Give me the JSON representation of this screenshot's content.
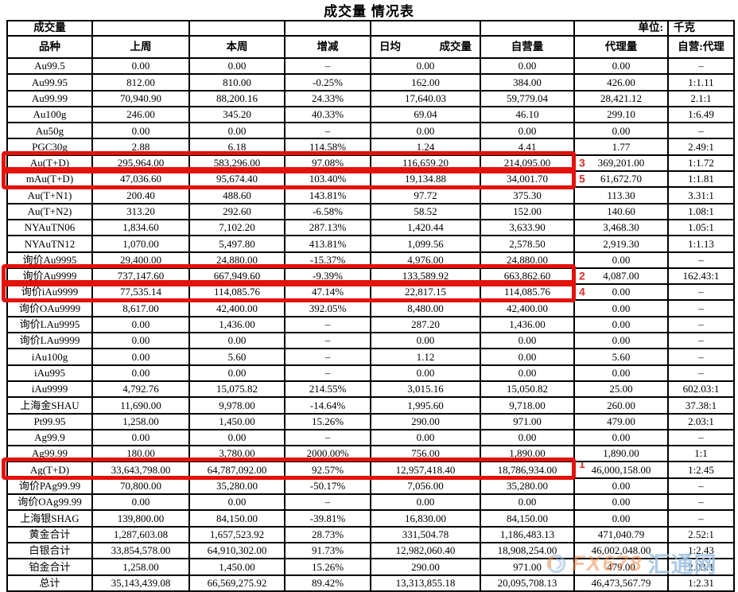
{
  "title": "成交量 情况表",
  "unit": {
    "label": "单位:",
    "value": "千克"
  },
  "table": {
    "corner_label": "成交量",
    "header": {
      "col_product": "品种",
      "col_last_week": "上周",
      "col_this_week": "本周",
      "col_change": "增减",
      "col_daily_left": "日均",
      "col_daily_right": "成交量",
      "col_prop": "自营量",
      "col_agency": "代理量",
      "col_ratio": "自营:代理"
    },
    "rows": [
      {
        "product": "Au99.5",
        "values": [
          "0.00",
          "0.00",
          "–",
          "0.00",
          "0.00",
          "0.00",
          "–"
        ]
      },
      {
        "product": "Au99.95",
        "values": [
          "812.00",
          "810.00",
          "-0.25%",
          "162.00",
          "384.00",
          "426.00",
          "1:1.11"
        ]
      },
      {
        "product": "Au99.99",
        "values": [
          "70,940.90",
          "88,200.16",
          "24.33%",
          "17,640.03",
          "59,779.04",
          "28,421.12",
          "2.1:1"
        ]
      },
      {
        "product": "Au100g",
        "values": [
          "246.00",
          "345.20",
          "40.33%",
          "69.04",
          "46.10",
          "299.10",
          "1:6.49"
        ]
      },
      {
        "product": "Au50g",
        "values": [
          "0.00",
          "0.00",
          "–",
          "0.00",
          "0.00",
          "0.00",
          "–"
        ]
      },
      {
        "product": "PGC30g",
        "values": [
          "2.88",
          "6.18",
          "114.58%",
          "1.24",
          "4.41",
          "1.77",
          "2.49:1"
        ]
      },
      {
        "product": "Au(T+D)",
        "values": [
          "295,964.00",
          "583,296.00",
          "97.08%",
          "116,659.20",
          "214,095.00",
          "369,201.00",
          "1:1.72"
        ],
        "highlight": true,
        "annotation": "3",
        "annotation_pos": "middle"
      },
      {
        "product": "mAu(T+D)",
        "values": [
          "47,036.60",
          "95,674.40",
          "103.40%",
          "19,134.88",
          "34,001.70",
          "61,672.70",
          "1:1.81"
        ],
        "highlight": true,
        "annotation": "5",
        "annotation_pos": "middle"
      },
      {
        "product": "Au(T+N1)",
        "values": [
          "200.40",
          "488.60",
          "143.81%",
          "97.72",
          "375.30",
          "113.30",
          "3.31:1"
        ]
      },
      {
        "product": "Au(T+N2)",
        "values": [
          "313.20",
          "292.60",
          "-6.58%",
          "58.52",
          "152.00",
          "140.60",
          "1.08:1"
        ]
      },
      {
        "product": "NYAuTN06",
        "values": [
          "1,834.60",
          "7,102.20",
          "287.13%",
          "1,420.44",
          "3,633.90",
          "3,468.30",
          "1.05:1"
        ]
      },
      {
        "product": "NYAuTN12",
        "values": [
          "1,070.00",
          "5,497.80",
          "413.81%",
          "1,099.56",
          "2,578.50",
          "2,919.30",
          "1:1.13"
        ]
      },
      {
        "product": "询价Au9995",
        "values": [
          "29,400.00",
          "24,880.00",
          "-15.37%",
          "4,976.00",
          "24,880.00",
          "0.00",
          "–"
        ]
      },
      {
        "product": "询价Au9999",
        "values": [
          "737,147.60",
          "667,949.60",
          "-9.39%",
          "133,589.92",
          "663,862.60",
          "4,087.00",
          "162.43:1"
        ],
        "highlight": true,
        "annotation": "2",
        "annotation_pos": "middle"
      },
      {
        "product": "询价iAu9999",
        "values": [
          "77,535.14",
          "114,085.76",
          "47.14%",
          "22,817.15",
          "114,085.76",
          "0.00",
          "–"
        ],
        "highlight": true,
        "annotation": "4",
        "annotation_pos": "middle"
      },
      {
        "product": "询价OAu9999",
        "values": [
          "8,617.00",
          "42,400.00",
          "392.05%",
          "8,480.00",
          "42,400.00",
          "0.00",
          "–"
        ]
      },
      {
        "product": "询价LAu9995",
        "values": [
          "0.00",
          "1,436.00",
          "–",
          "287.20",
          "1,436.00",
          "0.00",
          "–"
        ]
      },
      {
        "product": "询价LAu9999",
        "values": [
          "0.00",
          "0.00",
          "–",
          "0.00",
          "0.00",
          "0.00",
          "–"
        ]
      },
      {
        "product": "iAu100g",
        "values": [
          "0.00",
          "5.60",
          "–",
          "1.12",
          "0.00",
          "5.60",
          "–"
        ]
      },
      {
        "product": "iAu995",
        "values": [
          "0.00",
          "0.00",
          "–",
          "0.00",
          "0.00",
          "0.00",
          "–"
        ]
      },
      {
        "product": "iAu9999",
        "values": [
          "4,792.76",
          "15,075.82",
          "214.55%",
          "3,015.16",
          "15,050.82",
          "25.00",
          "602.03:1"
        ]
      },
      {
        "product": "上海金SHAU",
        "values": [
          "11,690.00",
          "9,978.00",
          "-14.64%",
          "1,995.60",
          "9,718.00",
          "260.00",
          "37.38:1"
        ]
      },
      {
        "product": "Pt99.95",
        "values": [
          "1,258.00",
          "1,450.00",
          "15.26%",
          "290.00",
          "971.00",
          "479.00",
          "2.03:1"
        ]
      },
      {
        "product": "Ag99.9",
        "values": [
          "0.00",
          "0.00",
          "–",
          "0.00",
          "0.00",
          "0.00",
          "–"
        ]
      },
      {
        "product": "Ag99.99",
        "values": [
          "180.00",
          "3,780.00",
          "2000.00%",
          "756.00",
          "1,890.00",
          "1,890.00",
          "1:1"
        ]
      },
      {
        "product": "Ag(T+D)",
        "values": [
          "33,643,798.00",
          "64,787,092.00",
          "92.57%",
          "12,957,418.40",
          "18,786,934.00",
          "46,000,158.00",
          "1:2.45"
        ],
        "highlight": true,
        "annotation": "1",
        "annotation_pos": "top"
      },
      {
        "product": "询价PAg99.99",
        "values": [
          "70,800.00",
          "35,280.00",
          "-50.17%",
          "7,056.00",
          "35,280.00",
          "0.00",
          "–"
        ]
      },
      {
        "product": "询价OAg99.99",
        "values": [
          "0.00",
          "0.00",
          "–",
          "0.00",
          "0.00",
          "0.00",
          "–"
        ]
      },
      {
        "product": "上海银SHAG",
        "values": [
          "139,800.00",
          "84,150.00",
          "-39.81%",
          "16,830.00",
          "84,150.00",
          "0.00",
          "–"
        ]
      },
      {
        "product": "黄金合计",
        "values": [
          "1,287,603.08",
          "1,657,523.92",
          "28.73%",
          "331,504.78",
          "1,186,483.13",
          "471,040.79",
          "2.52:1"
        ]
      },
      {
        "product": "白银合计",
        "values": [
          "33,854,578.00",
          "64,910,302.00",
          "91.73%",
          "12,982,060.40",
          "18,908,254.00",
          "46,002,048.00",
          "1:2.43"
        ]
      },
      {
        "product": "铂金合计",
        "values": [
          "1,258.00",
          "1,450.00",
          "15.26%",
          "290.00",
          "971.00",
          "479.00",
          "2.03:1"
        ]
      },
      {
        "product": "总计",
        "values": [
          "35,143,439.08",
          "66,569,275.92",
          "89.42%",
          "13,313,855.18",
          "20,095,708.13",
          "46,473,567.79",
          "1:2.31"
        ]
      }
    ]
  },
  "colors": {
    "highlight_red": "#e3120b",
    "annotation_red": "#e02b2b",
    "watermark_orange": "#f08c4a",
    "watermark_blue": "#9cbfe0"
  },
  "watermark": {
    "brand_latin": "FX678",
    "brand_cn": "汇通网"
  }
}
